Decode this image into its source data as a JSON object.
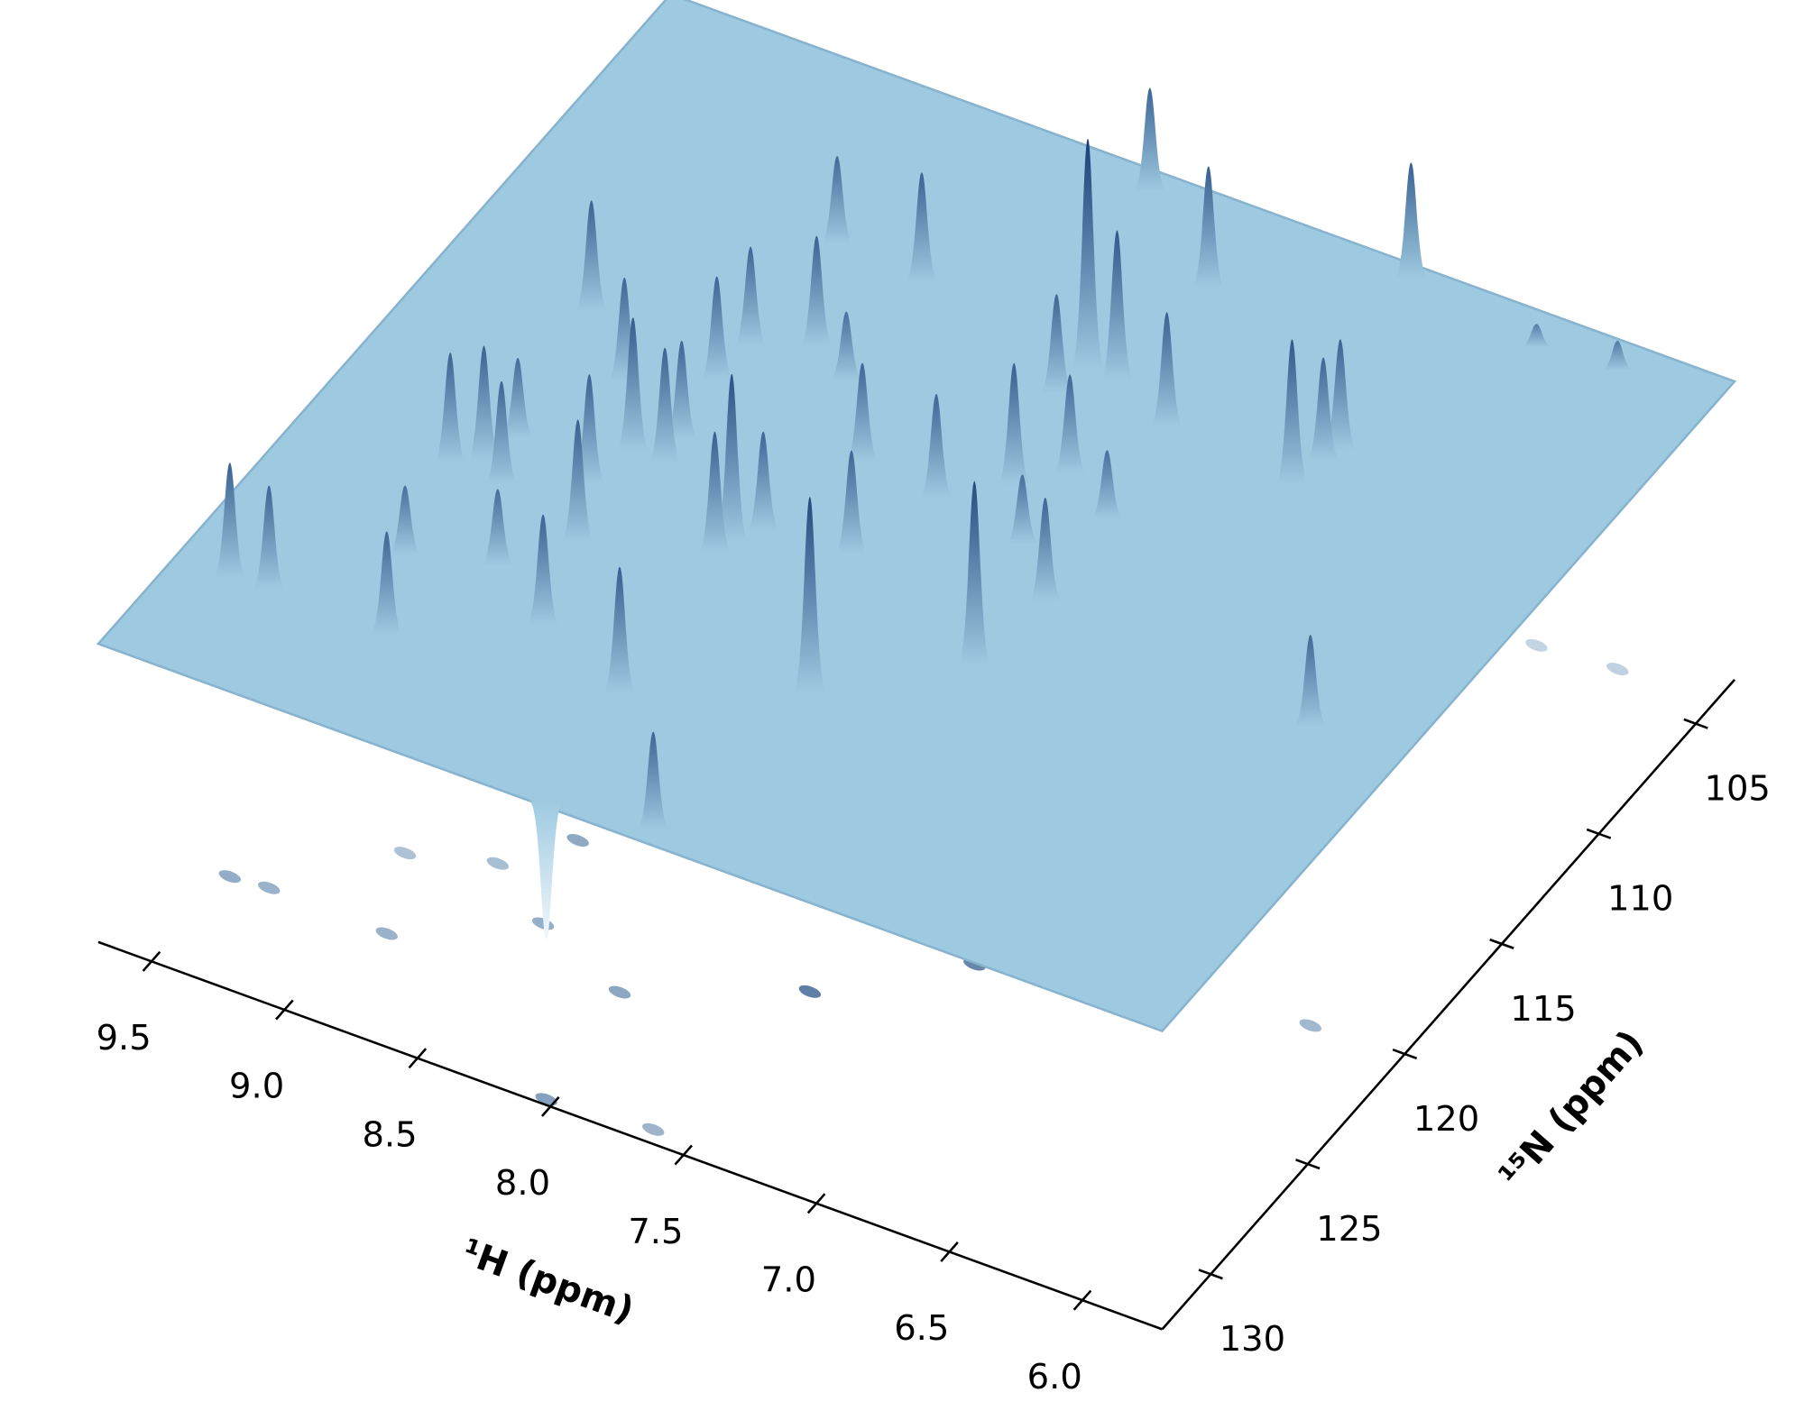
{
  "chart_data": {
    "type": "surface3d",
    "xlabel": "¹H (ppm)",
    "ylabel": "¹⁵N (ppm)",
    "xlim": [
      9.7,
      5.7
    ],
    "ylim": [
      132.5,
      103
    ],
    "xticks": [
      9.5,
      {
        "value": 9,
        "label": "9.0"
      },
      8.5,
      {
        "value": 8,
        "label": "8.0"
      },
      7.5,
      {
        "value": 7,
        "label": "7.0"
      },
      6.5,
      {
        "value": 6,
        "label": "6.0"
      }
    ],
    "yticks": [
      105,
      110,
      115,
      120,
      125,
      130
    ],
    "color": "#9ecae1",
    "peak_color": "#08306b",
    "peaks": {
      "x": [
        9.49,
        9.35,
        8.9,
        9.05,
        9.15,
        9.06,
        8.95,
        9.02,
        8.76,
        8.48,
        9.13,
        8.86,
        8.09,
        7.65,
        8.66,
        8.59,
        8.7,
        8.54,
        8.55,
        8.6,
        8.59,
        8.15,
        8.17,
        8.09,
        7.55,
        8.6,
        8.4,
        8.23,
        7.78,
        8.26,
        7.98,
        7.68,
        7.15,
        7.49,
        7.11,
        7.32,
        7.57,
        7.46,
        7.6,
        7.14,
        7.36,
        7.84,
        7.43,
        7.2,
        6.88,
        6.7,
        6.67,
        6.65,
        6.04,
        6.35,
        6.06,
        8.03
      ],
      "y": [
        128.6,
        128.5,
        128.6,
        125.6,
        121.9,
        121.4,
        122.0,
        120.2,
        124.8,
        126.3,
        114.9,
        116.9,
        127.7,
        132.0,
        119.2,
        123.0,
        120.9,
        119.2,
        118.2,
        115.7,
        114.1,
        121.1,
        121.7,
        120.3,
        125.3,
        109.5,
        113.3,
        114.1,
        120.0,
        109.8,
        116.7,
        117.0,
        122.3,
        115.6,
        119.2,
        117.5,
        110.7,
        110.7,
        111.9,
        115.6,
        114.5,
        103.8,
        106.4,
        111.7,
        103.5,
        112.1,
        110.9,
        110.3,
        120.2,
        104.3,
        104.1,
        132.3
      ],
      "z": [
        0.5,
        0.45,
        0.45,
        0.3,
        0.48,
        0.5,
        0.45,
        0.35,
        0.33,
        0.48,
        0.48,
        0.45,
        0.55,
        0.43,
        0.58,
        0.53,
        0.48,
        0.5,
        0.43,
        0.45,
        0.43,
        0.73,
        0.53,
        0.43,
        0.85,
        0.38,
        0.48,
        0.3,
        0.45,
        0.48,
        0.43,
        0.45,
        0.8,
        0.53,
        0.45,
        0.3,
        1,
        0.65,
        0.43,
        0.3,
        0.43,
        0.45,
        0.53,
        0.5,
        0.5,
        0.63,
        0.45,
        0.48,
        0.4,
        0.1,
        0.13,
        -0.6
      ]
    }
  }
}
